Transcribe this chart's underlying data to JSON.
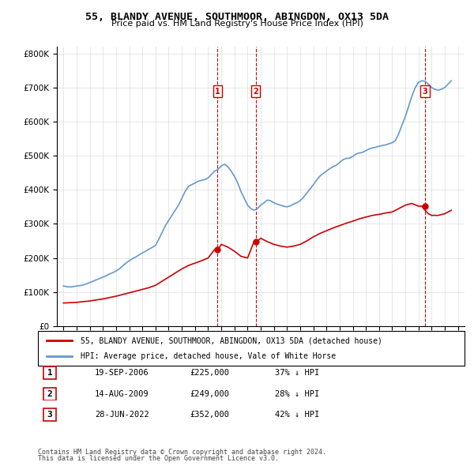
{
  "title": "55, BLANDY AVENUE, SOUTHMOOR, ABINGDON, OX13 5DA",
  "subtitle": "Price paid vs. HM Land Registry's House Price Index (HPI)",
  "hpi_label": "HPI: Average price, detached house, Vale of White Horse",
  "price_label": "55, BLANDY AVENUE, SOUTHMOOR, ABINGDON, OX13 5DA (detached house)",
  "footer_line1": "Contains HM Land Registry data © Crown copyright and database right 2024.",
  "footer_line2": "This data is licensed under the Open Government Licence v3.0.",
  "sales": [
    {
      "label": "1",
      "date": "19-SEP-2006",
      "price": 225000,
      "hpi_pct": "37% ↓ HPI"
    },
    {
      "label": "2",
      "date": "14-AUG-2009",
      "price": 249000,
      "hpi_pct": "28% ↓ HPI"
    },
    {
      "label": "3",
      "date": "28-JUN-2022",
      "price": 352000,
      "hpi_pct": "42% ↓ HPI"
    }
  ],
  "sale_years": [
    2006.72,
    2009.62,
    2022.49
  ],
  "sale_prices": [
    225000,
    249000,
    352000
  ],
  "hpi_color": "#6699cc",
  "price_color": "#cc0000",
  "vline_color": "#cc0000",
  "ylim": [
    0,
    820000
  ],
  "xlim_start": 1994.5,
  "xlim_end": 2025.5,
  "hpi_data": {
    "years": [
      1995.0,
      1995.25,
      1995.5,
      1995.75,
      1996.0,
      1996.25,
      1996.5,
      1996.75,
      1997.0,
      1997.25,
      1997.5,
      1997.75,
      1998.0,
      1998.25,
      1998.5,
      1998.75,
      1999.0,
      1999.25,
      1999.5,
      1999.75,
      2000.0,
      2000.25,
      2000.5,
      2000.75,
      2001.0,
      2001.25,
      2001.5,
      2001.75,
      2002.0,
      2002.25,
      2002.5,
      2002.75,
      2003.0,
      2003.25,
      2003.5,
      2003.75,
      2004.0,
      2004.25,
      2004.5,
      2004.75,
      2005.0,
      2005.25,
      2005.5,
      2005.75,
      2006.0,
      2006.25,
      2006.5,
      2006.75,
      2007.0,
      2007.25,
      2007.5,
      2007.75,
      2008.0,
      2008.25,
      2008.5,
      2008.75,
      2009.0,
      2009.25,
      2009.5,
      2009.75,
      2010.0,
      2010.25,
      2010.5,
      2010.75,
      2011.0,
      2011.25,
      2011.5,
      2011.75,
      2012.0,
      2012.25,
      2012.5,
      2012.75,
      2013.0,
      2013.25,
      2013.5,
      2013.75,
      2014.0,
      2014.25,
      2014.5,
      2014.75,
      2015.0,
      2015.25,
      2015.5,
      2015.75,
      2016.0,
      2016.25,
      2016.5,
      2016.75,
      2017.0,
      2017.25,
      2017.5,
      2017.75,
      2018.0,
      2018.25,
      2018.5,
      2018.75,
      2019.0,
      2019.25,
      2019.5,
      2019.75,
      2020.0,
      2020.25,
      2020.5,
      2020.75,
      2021.0,
      2021.25,
      2021.5,
      2021.75,
      2022.0,
      2022.25,
      2022.5,
      2022.75,
      2023.0,
      2023.25,
      2023.5,
      2023.75,
      2024.0,
      2024.25,
      2024.5
    ],
    "values": [
      118000,
      116000,
      115000,
      116000,
      118000,
      119000,
      121000,
      124000,
      128000,
      132000,
      136000,
      140000,
      144000,
      148000,
      153000,
      157000,
      162000,
      168000,
      177000,
      185000,
      192000,
      198000,
      203000,
      209000,
      215000,
      220000,
      226000,
      231000,
      237000,
      255000,
      275000,
      295000,
      310000,
      325000,
      340000,
      355000,
      375000,
      395000,
      410000,
      415000,
      420000,
      425000,
      428000,
      430000,
      435000,
      445000,
      455000,
      460000,
      470000,
      475000,
      468000,
      455000,
      440000,
      420000,
      395000,
      375000,
      355000,
      345000,
      340000,
      345000,
      355000,
      362000,
      370000,
      368000,
      362000,
      358000,
      355000,
      352000,
      350000,
      353000,
      358000,
      362000,
      368000,
      378000,
      390000,
      402000,
      415000,
      428000,
      440000,
      448000,
      455000,
      462000,
      468000,
      472000,
      480000,
      488000,
      492000,
      493000,
      498000,
      505000,
      508000,
      510000,
      515000,
      520000,
      523000,
      525000,
      528000,
      530000,
      532000,
      535000,
      538000,
      545000,
      565000,
      590000,
      615000,
      645000,
      675000,
      700000,
      715000,
      720000,
      718000,
      710000,
      700000,
      695000,
      692000,
      695000,
      700000,
      710000,
      720000
    ]
  },
  "price_series": {
    "years": [
      1995.0,
      1995.5,
      1996.0,
      1996.5,
      1997.0,
      1997.5,
      1998.0,
      1998.5,
      1999.0,
      1999.5,
      2000.0,
      2000.5,
      2001.0,
      2001.5,
      2002.0,
      2002.5,
      2003.0,
      2003.5,
      2004.0,
      2004.5,
      2005.0,
      2005.5,
      2006.0,
      2006.5,
      2006.75,
      2007.0,
      2007.5,
      2008.0,
      2008.5,
      2009.0,
      2009.5,
      2009.75,
      2010.0,
      2010.5,
      2011.0,
      2011.5,
      2012.0,
      2012.5,
      2013.0,
      2013.5,
      2014.0,
      2014.5,
      2015.0,
      2015.5,
      2016.0,
      2016.5,
      2017.0,
      2017.5,
      2018.0,
      2018.5,
      2019.0,
      2019.5,
      2020.0,
      2020.5,
      2021.0,
      2021.5,
      2022.0,
      2022.25,
      2022.5,
      2022.75,
      2023.0,
      2023.5,
      2024.0,
      2024.5
    ],
    "values": [
      68000,
      69000,
      70000,
      72000,
      74000,
      77000,
      80000,
      84000,
      88000,
      93000,
      98000,
      103000,
      108000,
      113000,
      120000,
      132000,
      144000,
      156000,
      168000,
      178000,
      185000,
      192000,
      200000,
      225000,
      225000,
      240000,
      232000,
      220000,
      205000,
      200000,
      249000,
      249000,
      258000,
      248000,
      240000,
      235000,
      232000,
      235000,
      240000,
      250000,
      262000,
      272000,
      280000,
      288000,
      295000,
      302000,
      308000,
      315000,
      320000,
      325000,
      328000,
      332000,
      335000,
      345000,
      355000,
      360000,
      352000,
      352000,
      340000,
      330000,
      325000,
      325000,
      330000,
      340000
    ]
  }
}
